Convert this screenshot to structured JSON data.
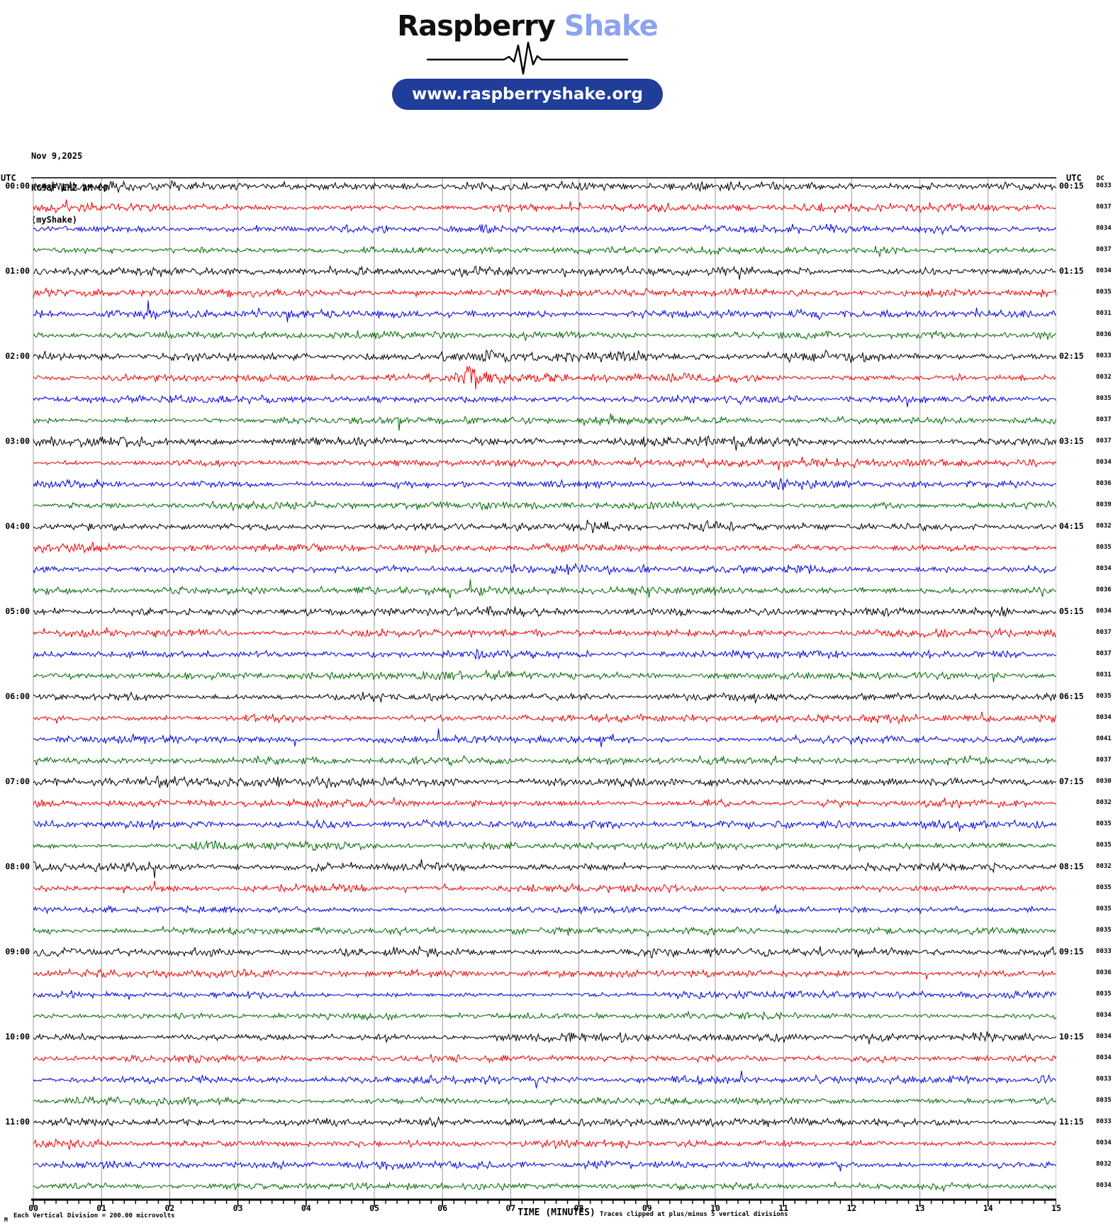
{
  "header": {
    "logo_primary": "Raspberry",
    "logo_secondary": "Shake",
    "url_button": "www.raspberryshake.org"
  },
  "station": {
    "date": "Nov 9,2025",
    "id": "RC98F EHZ AM 00",
    "network": "(myShake)"
  },
  "axes": {
    "left_header": "UTC",
    "right_header": "UTC",
    "dc_header": "DC",
    "x_title": "TIME (MINUTES)",
    "x_labels": [
      "00",
      "01",
      "02",
      "03",
      "04",
      "05",
      "06",
      "07",
      "08",
      "09",
      "10",
      "11",
      "12",
      "13",
      "14",
      "15"
    ],
    "footer_marker": "M",
    "footer_scale": "Each Vertical Division =  200.00 microvolts",
    "footer_clip_note": "Traces clipped at plus/minus 5 vertical divisions"
  },
  "colors": {
    "trace": {
      "black": "#000000",
      "red": "#f00000",
      "blue": "#0000e8",
      "green": "#006a00"
    },
    "grid": "#999999",
    "axis": "#000000",
    "logo_secondary": "#8ca3ee",
    "pill_bg": "#1f3d99"
  },
  "chart_data": {
    "type": "line",
    "title": "RC98F EHZ AM 00 helicorder, Nov 9,2025",
    "x_range_minutes": [
      0,
      15
    ],
    "minutes_per_row": 15,
    "minor_tick_minutes": 0.1667,
    "row_spacing_px": 30,
    "clip_divisions": 5,
    "microvolts_per_division": 200.0,
    "hour_labels_left": [
      "00:00",
      "01:00",
      "02:00",
      "03:00",
      "04:00",
      "05:00",
      "06:00",
      "07:00",
      "08:00",
      "09:00",
      "10:00",
      "11:00"
    ],
    "hour_labels_right": [
      "00:15",
      "01:15",
      "02:15",
      "03:15",
      "04:15",
      "05:15",
      "06:15",
      "07:15",
      "08:15",
      "09:15",
      "10:15",
      "11:15"
    ],
    "rows": [
      {
        "c": "black",
        "dc": 8033,
        "amp": 2.5,
        "bursts": []
      },
      {
        "c": "red",
        "dc": 8037,
        "amp": 2.1,
        "bursts": []
      },
      {
        "c": "blue",
        "dc": 8034,
        "amp": 2.1,
        "bursts": [
          {
            "m": 14.35,
            "w": 0.06,
            "a": 5
          }
        ]
      },
      {
        "c": "green",
        "dc": 8037,
        "amp": 2.0,
        "bursts": []
      },
      {
        "c": "black",
        "dc": 8034,
        "amp": 2.5,
        "bursts": [
          {
            "m": 4.8,
            "w": 0.45,
            "a": 4.5
          }
        ]
      },
      {
        "c": "red",
        "dc": 8035,
        "amp": 2.0,
        "bursts": [
          {
            "m": 5.6,
            "w": 0.05,
            "a": 5
          }
        ]
      },
      {
        "c": "blue",
        "dc": 8031,
        "amp": 2.1,
        "bursts": []
      },
      {
        "c": "green",
        "dc": 8036,
        "amp": 1.9,
        "bursts": []
      },
      {
        "c": "black",
        "dc": 8033,
        "amp": 2.6,
        "bursts": []
      },
      {
        "c": "red",
        "dc": 8032,
        "amp": 2.2,
        "bursts": [
          {
            "m": 5.25,
            "w": 0.05,
            "a": 8
          },
          {
            "m": 6.42,
            "w": 0.13,
            "a": 21
          },
          {
            "m": 6.75,
            "w": 0.28,
            "a": 5
          }
        ]
      },
      {
        "c": "blue",
        "dc": 8035,
        "amp": 2.1,
        "bursts": [
          {
            "m": 10.7,
            "w": 0.45,
            "a": 5.5
          }
        ]
      },
      {
        "c": "green",
        "dc": 8037,
        "amp": 2.0,
        "bursts": []
      },
      {
        "c": "black",
        "dc": 8037,
        "amp": 2.6,
        "bursts": []
      },
      {
        "c": "red",
        "dc": 8034,
        "amp": 2.1,
        "bursts": [
          {
            "m": 9.85,
            "w": 0.05,
            "a": 7
          }
        ]
      },
      {
        "c": "blue",
        "dc": 8036,
        "amp": 2.1,
        "bursts": [
          {
            "m": 5.5,
            "w": 0.1,
            "a": 5
          }
        ]
      },
      {
        "c": "green",
        "dc": 8039,
        "amp": 2.1,
        "bursts": []
      },
      {
        "c": "black",
        "dc": 8032,
        "amp": 2.4,
        "bursts": []
      },
      {
        "c": "red",
        "dc": 8035,
        "amp": 2.1,
        "bursts": []
      },
      {
        "c": "blue",
        "dc": 8034,
        "amp": 2.2,
        "bursts": [
          {
            "m": 9.0,
            "w": 0.3,
            "a": 4
          }
        ]
      },
      {
        "c": "green",
        "dc": 8036,
        "amp": 2.2,
        "bursts": [
          {
            "m": 2.1,
            "w": 0.3,
            "a": 4
          }
        ]
      },
      {
        "c": "black",
        "dc": 8034,
        "amp": 2.4,
        "bursts": []
      },
      {
        "c": "red",
        "dc": 8037,
        "amp": 2.0,
        "bursts": []
      },
      {
        "c": "blue",
        "dc": 8037,
        "amp": 2.0,
        "bursts": []
      },
      {
        "c": "green",
        "dc": 8031,
        "amp": 2.0,
        "bursts": []
      },
      {
        "c": "black",
        "dc": 8035,
        "amp": 2.2,
        "bursts": []
      },
      {
        "c": "red",
        "dc": 8034,
        "amp": 2.0,
        "bursts": []
      },
      {
        "c": "blue",
        "dc": 8041,
        "amp": 2.1,
        "bursts": []
      },
      {
        "c": "green",
        "dc": 8037,
        "amp": 2.0,
        "bursts": []
      },
      {
        "c": "black",
        "dc": 8030,
        "amp": 2.4,
        "bursts": []
      },
      {
        "c": "red",
        "dc": 8032,
        "amp": 2.0,
        "bursts": [
          {
            "m": 11.6,
            "w": 0.06,
            "a": 6
          }
        ]
      },
      {
        "c": "blue",
        "dc": 8035,
        "amp": 2.1,
        "bursts": []
      },
      {
        "c": "green",
        "dc": 8035,
        "amp": 2.0,
        "bursts": []
      },
      {
        "c": "black",
        "dc": 8032,
        "amp": 2.3,
        "bursts": []
      },
      {
        "c": "red",
        "dc": 8035,
        "amp": 2.1,
        "bursts": []
      },
      {
        "c": "blue",
        "dc": 8035,
        "amp": 2.0,
        "bursts": [
          {
            "m": 10.85,
            "w": 0.1,
            "a": 4
          }
        ]
      },
      {
        "c": "green",
        "dc": 8035,
        "amp": 1.9,
        "bursts": []
      },
      {
        "c": "black",
        "dc": 8033,
        "amp": 2.4,
        "bursts": []
      },
      {
        "c": "red",
        "dc": 8036,
        "amp": 2.0,
        "bursts": [
          {
            "m": 4.5,
            "w": 0.4,
            "a": 3.5
          }
        ]
      },
      {
        "c": "blue",
        "dc": 8035,
        "amp": 2.0,
        "bursts": [
          {
            "m": 3.85,
            "w": 0.08,
            "a": 6
          }
        ]
      },
      {
        "c": "green",
        "dc": 8034,
        "amp": 1.9,
        "bursts": []
      },
      {
        "c": "black",
        "dc": 8034,
        "amp": 2.2,
        "bursts": []
      },
      {
        "c": "red",
        "dc": 8034,
        "amp": 1.9,
        "bursts": []
      },
      {
        "c": "blue",
        "dc": 8033,
        "amp": 2.0,
        "bursts": [
          {
            "m": 14.8,
            "w": 0.12,
            "a": 5
          }
        ]
      },
      {
        "c": "green",
        "dc": 8035,
        "amp": 1.9,
        "bursts": [
          {
            "m": 2.8,
            "w": 0.15,
            "a": 4
          }
        ]
      },
      {
        "c": "black",
        "dc": 8033,
        "amp": 2.2,
        "bursts": []
      },
      {
        "c": "red",
        "dc": 8034,
        "amp": 2.0,
        "bursts": []
      },
      {
        "c": "blue",
        "dc": 8032,
        "amp": 1.9,
        "bursts": []
      },
      {
        "c": "green",
        "dc": 8034,
        "amp": 1.9,
        "bursts": []
      }
    ]
  }
}
